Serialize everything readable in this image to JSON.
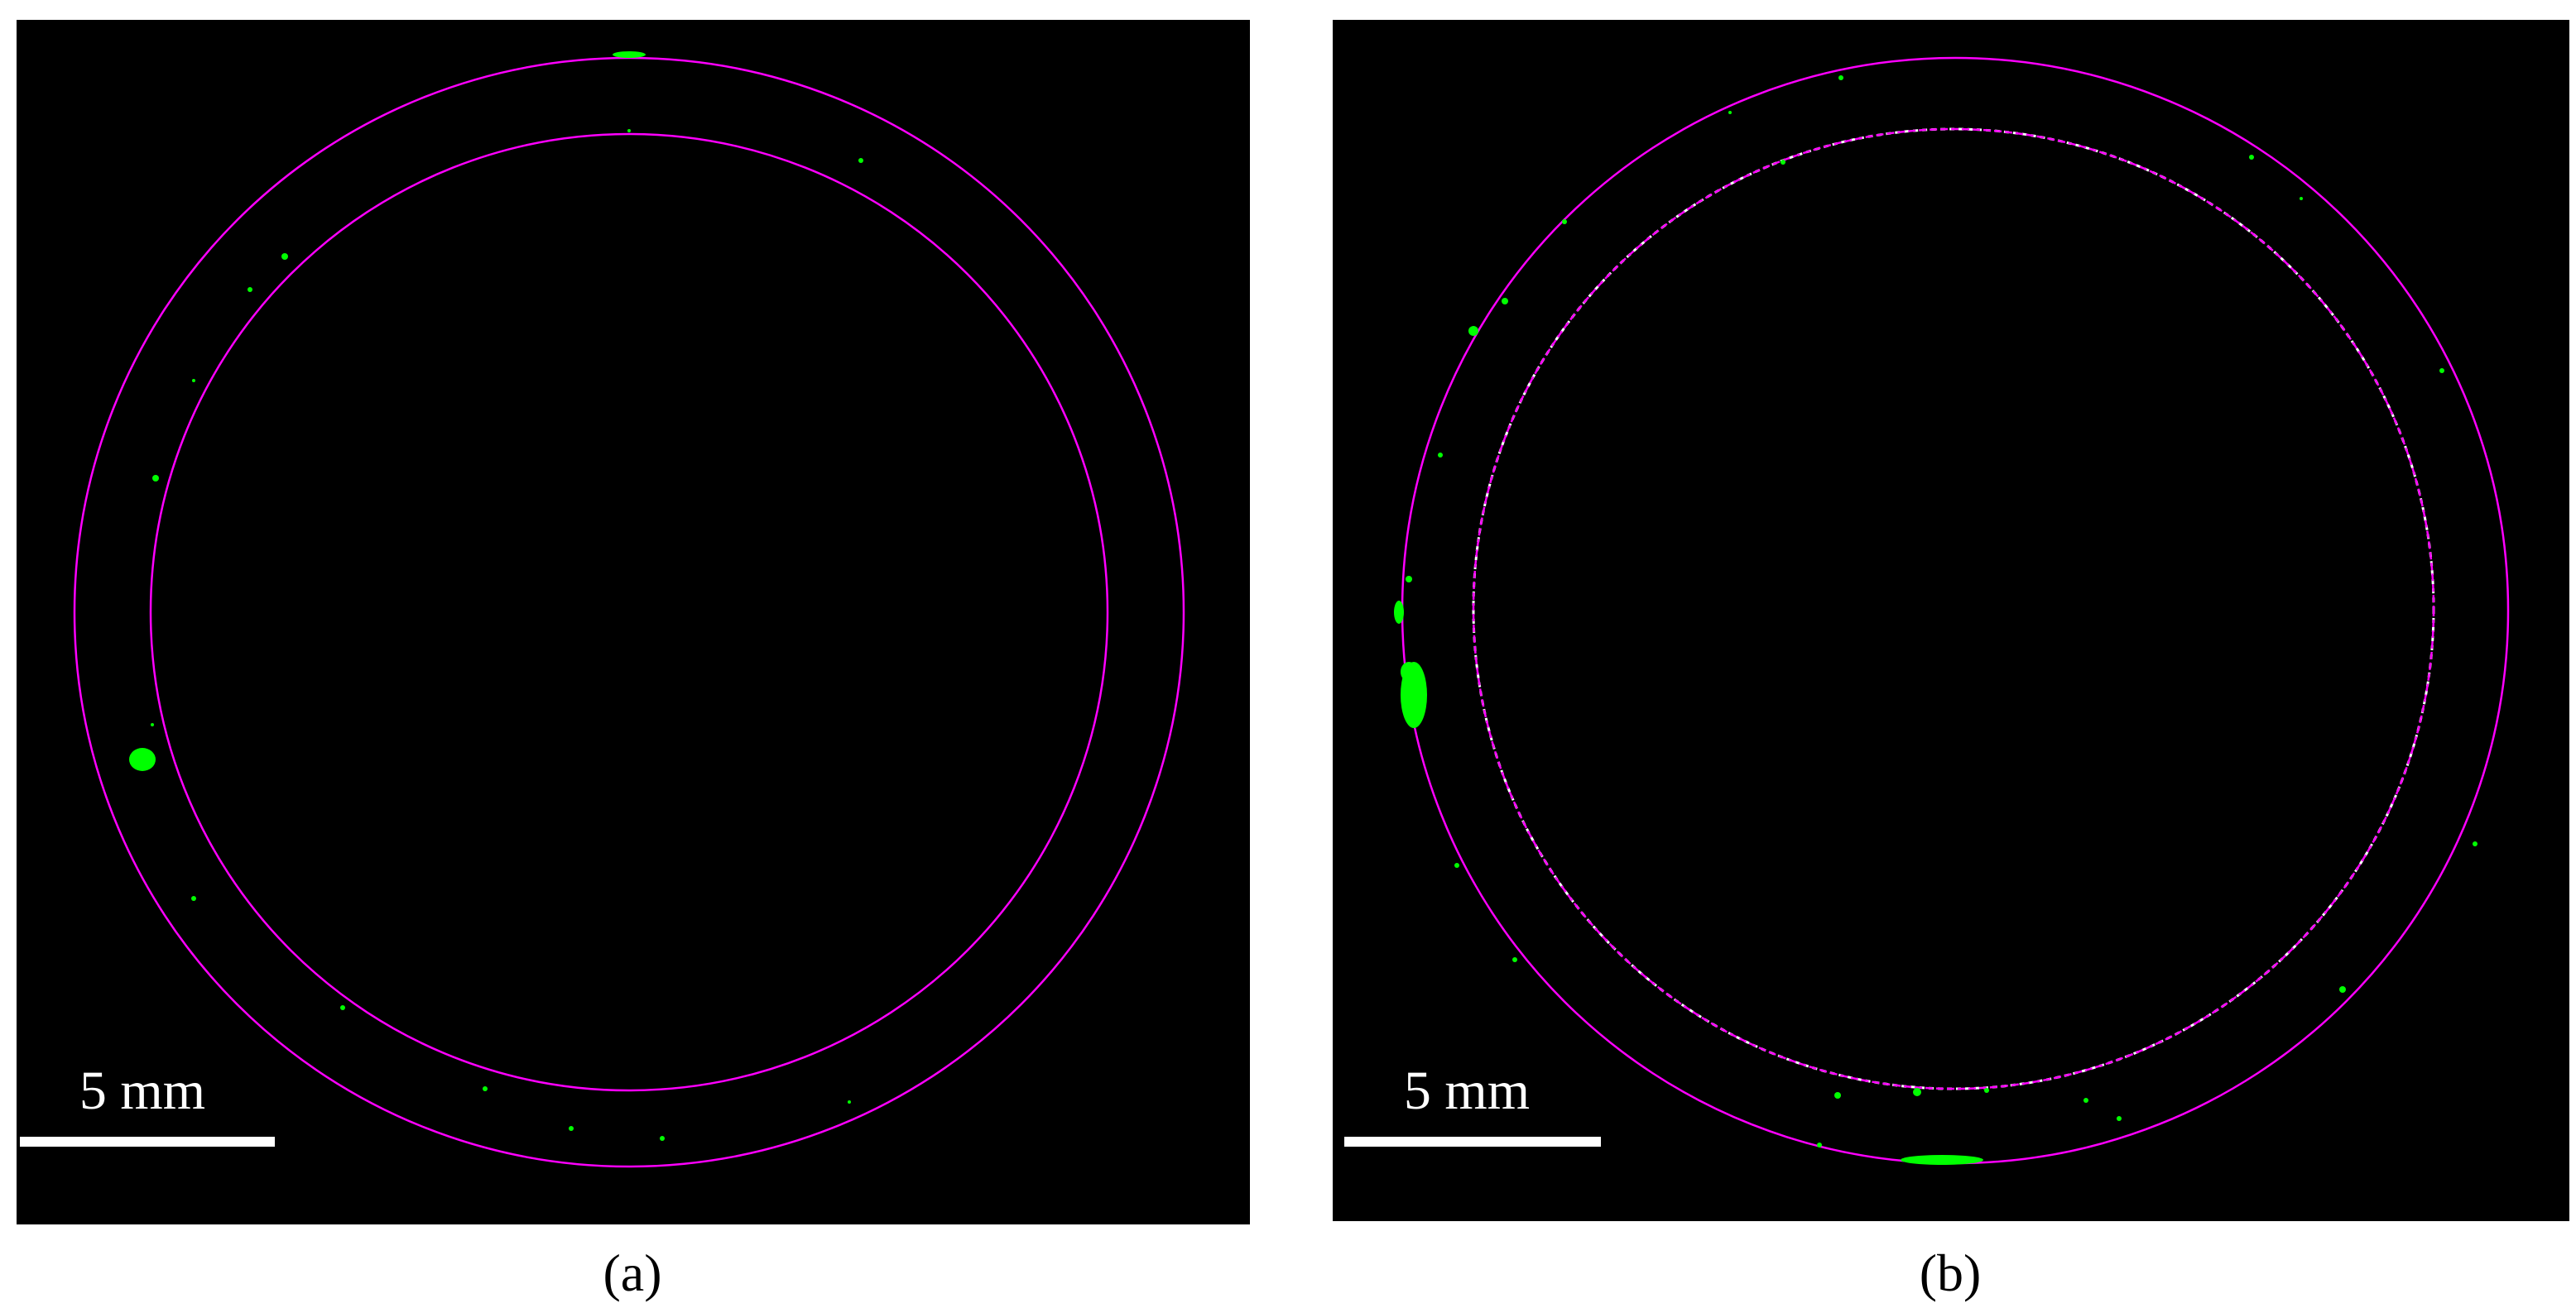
{
  "panels": [
    {
      "scale_bar_label": "5 mm",
      "caption": "(a)"
    },
    {
      "scale_bar_label": "5 mm",
      "caption": "(b)"
    }
  ]
}
